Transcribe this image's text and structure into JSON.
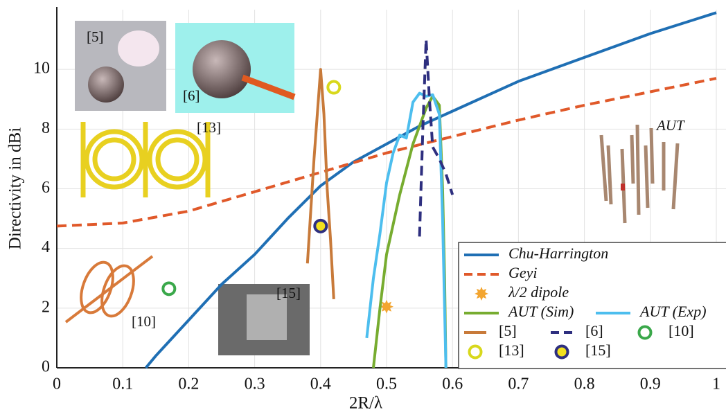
{
  "chart_data": {
    "type": "line",
    "x_label": "2R/λ",
    "y_label": "Directivity in dBi",
    "xlim": [
      0,
      1
    ],
    "ylim": [
      0,
      12
    ],
    "xticks": [
      0,
      0.1,
      0.2,
      0.3,
      0.4,
      0.5,
      0.6,
      0.7,
      0.8,
      0.9,
      1
    ],
    "yticks": [
      0,
      2,
      4,
      6,
      8,
      10
    ],
    "grid": true,
    "legend": "lower right",
    "series": [
      {
        "name": "Chu-Harrington",
        "color": "#1f6fb4",
        "style": "solid",
        "italic": true,
        "x": [
          0.135,
          0.15,
          0.2,
          0.25,
          0.3,
          0.35,
          0.4,
          0.45,
          0.5,
          0.55,
          0.6,
          0.7,
          0.8,
          0.9,
          1.0
        ],
        "values": [
          0,
          0.4,
          1.6,
          2.8,
          3.8,
          5.0,
          6.1,
          6.9,
          7.5,
          8.1,
          8.6,
          9.6,
          10.4,
          11.2,
          11.9
        ]
      },
      {
        "name": "Geyi",
        "color": "#e0592a",
        "style": "dashed",
        "italic": true,
        "x": [
          0,
          0.1,
          0.2,
          0.3,
          0.4,
          0.5,
          0.6,
          0.7,
          0.8,
          0.9,
          1.0
        ],
        "values": [
          4.75,
          4.85,
          5.25,
          5.9,
          6.55,
          7.2,
          7.75,
          8.3,
          8.8,
          9.25,
          9.7
        ]
      },
      {
        "name": "λ/2 dipole",
        "color": "#f3a530",
        "style": "star",
        "italic": true,
        "x": [
          0.5
        ],
        "values": [
          2.05
        ]
      },
      {
        "name": "AUT (Sim)",
        "color": "#77ac30",
        "style": "solid",
        "italic": true,
        "x": [
          0.48,
          0.49,
          0.5,
          0.52,
          0.54,
          0.56,
          0.57,
          0.58,
          0.585,
          0.588,
          0.59
        ],
        "values": [
          0,
          2.0,
          3.8,
          5.8,
          7.5,
          8.7,
          9.1,
          8.8,
          6,
          3,
          0
        ]
      },
      {
        "name": "AUT (Exp)",
        "color": "#4dbeee",
        "style": "solid",
        "italic": true,
        "x": [
          0.47,
          0.48,
          0.49,
          0.5,
          0.51,
          0.52,
          0.53,
          0.54,
          0.55,
          0.56,
          0.57,
          0.58,
          0.585,
          0.59
        ],
        "values": [
          1.0,
          3.0,
          4.5,
          6.2,
          7.2,
          7.8,
          7.7,
          8.9,
          9.2,
          9.1,
          9.15,
          8.5,
          5,
          0
        ]
      },
      {
        "name": "[5]",
        "color": "#c87a3a",
        "style": "solid",
        "italic": false,
        "x": [
          0.38,
          0.39,
          0.4,
          0.405,
          0.41,
          0.415,
          0.42
        ],
        "values": [
          3.5,
          7,
          10,
          8.5,
          6,
          4.3,
          2.3
        ]
      },
      {
        "name": "[6]",
        "color": "#2e2f7f",
        "style": "dashed",
        "italic": false,
        "x": [
          0.55,
          0.555,
          0.56,
          0.565,
          0.57,
          0.58,
          0.59,
          0.6
        ],
        "values": [
          4.4,
          8,
          11,
          9,
          7.4,
          7.0,
          6.5,
          5.8
        ]
      },
      {
        "name": "[10]",
        "color": "#3aa84a",
        "style": "ring",
        "italic": false,
        "x": [
          0.17
        ],
        "values": [
          2.65
        ]
      },
      {
        "name": "[13]",
        "color": "#d8d81c",
        "style": "ring",
        "italic": false,
        "x": [
          0.42
        ],
        "values": [
          9.4
        ]
      },
      {
        "name": "[15]",
        "color": "#2e2f7f",
        "style": "ring",
        "marker_fill": "#f2e01e",
        "italic": false,
        "x": [
          0.4
        ],
        "values": [
          4.75
        ]
      }
    ],
    "annotations": [
      "[5]",
      "[6]",
      "[13]",
      "[10]",
      "[15]",
      "AUT"
    ]
  }
}
